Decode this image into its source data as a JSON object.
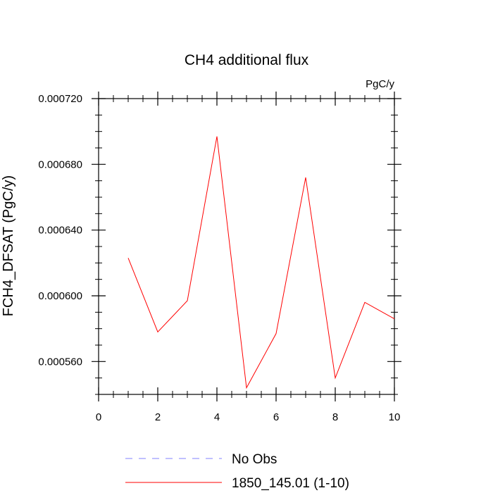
{
  "chart_data": {
    "type": "line",
    "title": "CH4 additional flux",
    "units": "PgC/y",
    "xlabel": "",
    "ylabel": "FCH4_DFSAT  (PgC/y)",
    "xlim": [
      0,
      10
    ],
    "ylim": [
      0.00054,
      0.00072
    ],
    "x_ticks": [
      0,
      2,
      4,
      6,
      8,
      10
    ],
    "x_tick_labels": [
      "0",
      "2",
      "4",
      "6",
      "8",
      "10"
    ],
    "y_ticks": [
      0.00056,
      0.0006,
      0.00064,
      0.00068,
      0.00072
    ],
    "y_tick_labels": [
      "0.000560",
      "0.000600",
      "0.000640",
      "0.000680",
      "0.000720"
    ],
    "grid": false,
    "legend_position": "bottom",
    "series": [
      {
        "name": "1850_145.01 (1-10)",
        "color": "#ff0000",
        "style": "solid",
        "x": [
          1,
          2,
          3,
          4,
          5,
          6,
          7,
          8,
          9,
          10
        ],
        "y": [
          0.000623,
          0.000578,
          0.000597,
          0.000697,
          0.000544,
          0.000577,
          0.000672,
          0.00055,
          0.000596,
          0.000586
        ]
      }
    ],
    "legend": [
      {
        "label": "No Obs",
        "color": "#8080ff",
        "style": "dashed"
      },
      {
        "label": "1850_145.01 (1-10)",
        "color": "#ff0000",
        "style": "solid"
      }
    ]
  }
}
